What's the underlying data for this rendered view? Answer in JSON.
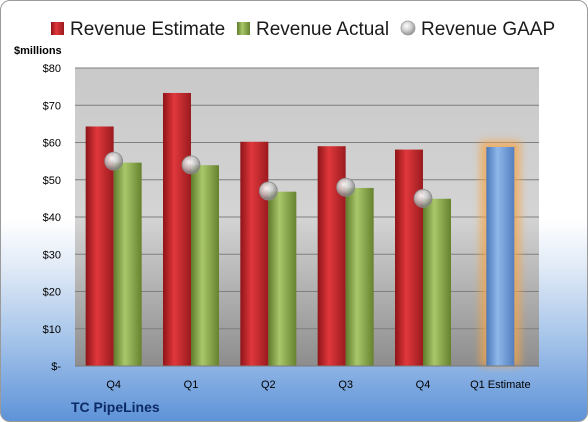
{
  "chart_data": {
    "type": "bar",
    "title": "",
    "ylabel": "$millions",
    "ylim": [
      0,
      80
    ],
    "y_ticks": [
      {
        "value": 0,
        "label": "$-"
      },
      {
        "value": 10,
        "label": "$10"
      },
      {
        "value": 20,
        "label": "$20"
      },
      {
        "value": 30,
        "label": "$30"
      },
      {
        "value": 40,
        "label": "$40"
      },
      {
        "value": 50,
        "label": "$50"
      },
      {
        "value": 60,
        "label": "$60"
      },
      {
        "value": 70,
        "label": "$70"
      },
      {
        "value": 80,
        "label": "$80"
      }
    ],
    "categories": [
      "Q4",
      "Q1",
      "Q2",
      "Q3",
      "Q4",
      "Q1 Estimate"
    ],
    "series": [
      {
        "name": "Revenue Estimate",
        "kind": "bar",
        "color": "#c0282d",
        "values": [
          64.3,
          73.3,
          60.2,
          59.0,
          58.1,
          null
        ]
      },
      {
        "name": "Revenue Actual",
        "kind": "bar",
        "color": "#8aa94d",
        "values": [
          54.6,
          53.9,
          46.8,
          47.8,
          44.9,
          null
        ]
      },
      {
        "name": "Revenue GAAP",
        "kind": "marker",
        "color": "#b8b8b8",
        "values": [
          55.0,
          54.0,
          47.0,
          48.0,
          45.0,
          null
        ]
      },
      {
        "name": "Q1 Estimate",
        "kind": "bar",
        "color": "#6d9ad8",
        "highlight": "#f5a54a",
        "values": [
          null,
          null,
          null,
          null,
          null,
          58.8
        ]
      }
    ],
    "legend": "top",
    "grid": true,
    "company": "TC PipeLines"
  }
}
